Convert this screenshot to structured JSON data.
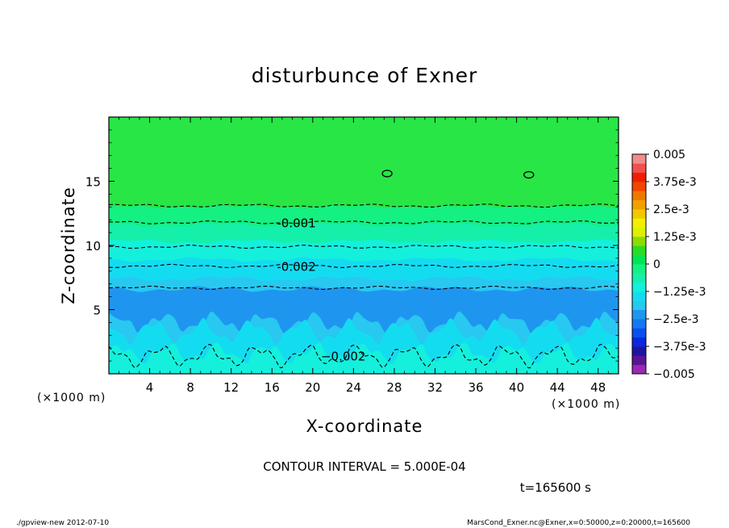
{
  "chart_data": {
    "type": "contour",
    "title": "disturbunce of Exner",
    "xlabel": "X-coordinate",
    "ylabel": "Z-coordinate",
    "x_unit_label": "(×1000 m)",
    "y_unit_label": "(×1000 m)",
    "xlim": [
      0,
      50
    ],
    "ylim": [
      0,
      20
    ],
    "x_ticks": [
      4,
      8,
      12,
      16,
      20,
      24,
      28,
      32,
      36,
      40,
      44,
      48
    ],
    "y_ticks": [
      5,
      10,
      15
    ],
    "contour_interval_text": "CONTOUR INTERVAL = 5.000E-04",
    "time_text": "t=165600 s",
    "colorbar": {
      "range": [
        -0.005,
        0.005
      ],
      "tick_labels": [
        "0.005",
        "3.75e-3",
        "2.5e-3",
        "1.25e-3",
        "0",
        "−1.25e-3",
        "−2.5e-3",
        "−3.75e-3",
        "−0.005"
      ],
      "colors": [
        "#9b28b4",
        "#5a1496",
        "#1e14a0",
        "#0a28dc",
        "#0a50f0",
        "#1478f0",
        "#1e96f0",
        "#28c8f0",
        "#14dcf0",
        "#14f0dc",
        "#14f0aa",
        "#14f082",
        "#00e650",
        "#28dc28",
        "#8cdc00",
        "#dcf000",
        "#f0f000",
        "#f0c800",
        "#f0a000",
        "#f07800",
        "#f04600",
        "#f01e00",
        "#f05050",
        "#f08c8c"
      ]
    },
    "bands": [
      {
        "range": [
          -0.003,
          -0.0025
        ],
        "color": "#1e96f0"
      },
      {
        "range": [
          -0.0025,
          -0.002
        ],
        "color": "#28c8f0"
      },
      {
        "range": [
          -0.002,
          -0.0015
        ],
        "color": "#14dcf0"
      },
      {
        "range": [
          -0.0015,
          -0.001
        ],
        "color": "#14f0dc"
      },
      {
        "range": [
          -0.001,
          -0.0005
        ],
        "color": "#14f0aa"
      },
      {
        "range": [
          -0.0005,
          0
        ],
        "color": "#14f082"
      },
      {
        "range": [
          0,
          0.0005
        ],
        "color": "#28e646"
      }
    ],
    "contours": [
      {
        "level": -0.0005,
        "z_km": 13.1,
        "label": ""
      },
      {
        "level": -0.001,
        "z_km": 11.8,
        "label": "-0.001"
      },
      {
        "level": -0.0015,
        "z_km": 9.9,
        "label": ""
      },
      {
        "level": -0.002,
        "z_km": 8.4,
        "label": "-0.002"
      },
      {
        "level": -0.0025,
        "z_km": 6.7,
        "label": ""
      },
      {
        "level": -0.002,
        "z_km": 1.4,
        "label": "−0.002"
      }
    ],
    "closed_contours": [
      {
        "level": 0,
        "x_km": 27.3,
        "z_km": 15.6
      },
      {
        "level": 0,
        "x_km": 41.2,
        "z_km": 15.5
      }
    ]
  },
  "footer": {
    "left": "./gpview-new  2012-07-10",
    "right": "MarsCond_Exner.nc@Exner,x=0:50000,z=0:20000,t=165600"
  }
}
